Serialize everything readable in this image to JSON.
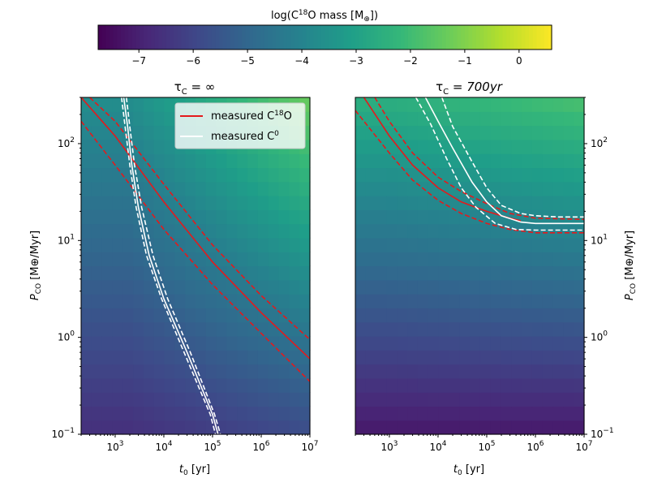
{
  "colorbar": {
    "label_main": "log(C",
    "label_sup": "18",
    "label_rest": "O mass [M",
    "label_sub": "⊕",
    "label_end": "])",
    "range": [
      -7.75,
      0.6
    ],
    "ticks": [
      "−7",
      "−6",
      "−5",
      "−4",
      "−3",
      "−2",
      "−1",
      "0"
    ],
    "tick_values": [
      -7,
      -6,
      -5,
      -4,
      -3,
      -2,
      -1,
      0
    ],
    "colormap": "viridis"
  },
  "chart_data": [
    {
      "type": "heatmap",
      "title_main": "τ",
      "title_sub": "C",
      "title_rest": " = ∞",
      "xlabel_main": "t",
      "xlabel_sub": "0",
      "xlabel_rest": " [yr]",
      "ylabel_main": "P",
      "ylabel_sub": "CO",
      "ylabel_rest": " [M⊕/Myr]",
      "x_scale": "log",
      "y_scale": "log",
      "xlim": [
        200,
        10000000
      ],
      "ylim": [
        0.1,
        300
      ],
      "x_ticks": [
        "10",
        "10",
        "10",
        "10",
        "10"
      ],
      "x_tick_exps": [
        "3",
        "4",
        "5",
        "6",
        "7"
      ],
      "x_tick_values": [
        1000,
        10000,
        100000,
        1000000,
        10000000
      ],
      "y_ticks": [
        "10",
        "10",
        "10",
        "10"
      ],
      "y_tick_exps": [
        "−1",
        "0",
        "1",
        "2"
      ],
      "y_tick_values": [
        0.1,
        1,
        10,
        100
      ],
      "legend": {
        "position": "upper right",
        "items": [
          {
            "label_main": "measured C",
            "label_sup": "18",
            "label_rest": "O",
            "color": "#e41a1c"
          },
          {
            "label_main": "measured C",
            "label_sup": "0",
            "label_rest": "",
            "color": "#ffffff"
          }
        ]
      },
      "series": [
        {
          "name": "measured C18O",
          "style": "solid",
          "color": "#e41a1c",
          "x": [
            200,
            1000,
            10000,
            100000,
            1000000,
            10000000
          ],
          "y": [
            300,
            120,
            25,
            6,
            1.8,
            0.6
          ]
        },
        {
          "name": "measured C18O upper",
          "style": "dashed",
          "color": "#e41a1c",
          "x": [
            300,
            1000,
            10000,
            100000,
            1000000,
            10000000
          ],
          "y": [
            300,
            170,
            38,
            9,
            2.7,
            0.95
          ]
        },
        {
          "name": "measured C18O lower",
          "style": "dashed",
          "color": "#e41a1c",
          "x": [
            200,
            1000,
            10000,
            100000,
            1000000,
            10000000
          ],
          "y": [
            170,
            60,
            13,
            3.5,
            1.1,
            0.35
          ]
        },
        {
          "name": "measured C0",
          "style": "solid",
          "color": "#ffffff",
          "x": [
            1500,
            1800,
            2200,
            3000,
            5000,
            10000,
            30000,
            100000,
            130000
          ],
          "y": [
            300,
            150,
            60,
            22,
            7,
            2.5,
            0.7,
            0.16,
            0.1
          ]
        },
        {
          "name": "measured C0 upper",
          "style": "dashed",
          "color": "#ffffff",
          "x": [
            1700,
            2000,
            2500,
            3500,
            6000,
            12000,
            35000,
            110000,
            145000
          ],
          "y": [
            300,
            150,
            60,
            22,
            7,
            2.5,
            0.7,
            0.16,
            0.1
          ]
        },
        {
          "name": "measured C0 lower",
          "style": "dashed",
          "color": "#ffffff",
          "x": [
            1350,
            1600,
            2000,
            2700,
            4400,
            9000,
            26000,
            90000,
            115000
          ],
          "y": [
            300,
            150,
            60,
            22,
            7,
            2.5,
            0.7,
            0.16,
            0.1
          ]
        }
      ]
    },
    {
      "type": "heatmap",
      "title_main": "τ",
      "title_sub": "C",
      "title_rest": " = 700yr",
      "xlabel_main": "t",
      "xlabel_sub": "0",
      "xlabel_rest": " [yr]",
      "ylabel_main": "P",
      "ylabel_sub": "CO",
      "ylabel_rest": " [M⊕/Myr]",
      "x_scale": "log",
      "y_scale": "log",
      "xlim": [
        200,
        10000000
      ],
      "ylim": [
        0.1,
        300
      ],
      "x_ticks": [
        "10",
        "10",
        "10",
        "10",
        "10"
      ],
      "x_tick_exps": [
        "3",
        "4",
        "5",
        "6",
        "7"
      ],
      "x_tick_values": [
        1000,
        10000,
        100000,
        1000000,
        10000000
      ],
      "y_ticks": [
        "10",
        "10",
        "10",
        "10"
      ],
      "y_tick_exps": [
        "−1",
        "0",
        "1",
        "2"
      ],
      "y_tick_values": [
        0.1,
        1,
        10,
        100
      ],
      "series": [
        {
          "name": "measured C18O",
          "style": "solid",
          "color": "#e41a1c",
          "x": [
            300,
            1000,
            3000,
            10000,
            30000,
            100000,
            300000,
            500000
          ],
          "y": [
            300,
            120,
            60,
            35,
            25,
            20,
            17,
            16
          ]
        },
        {
          "name": "measured C18O upper",
          "style": "dashed",
          "color": "#e41a1c",
          "x": [
            500,
            1000,
            3000,
            10000,
            30000,
            100000,
            300000,
            1000000,
            10000000
          ],
          "y": [
            300,
            170,
            80,
            45,
            32,
            24,
            19,
            17,
            16.5
          ]
        },
        {
          "name": "measured C18O lower",
          "style": "dashed",
          "color": "#e41a1c",
          "x": [
            200,
            1000,
            3000,
            10000,
            30000,
            100000,
            300000,
            1000000,
            10000000
          ],
          "y": [
            220,
            80,
            42,
            26,
            19,
            15,
            13,
            12,
            12
          ]
        },
        {
          "name": "measured C0",
          "style": "solid",
          "color": "#ffffff",
          "x": [
            5500,
            10000,
            20000,
            50000,
            100000,
            200000,
            500000,
            1000000,
            10000000
          ],
          "y": [
            300,
            170,
            90,
            40,
            25,
            18,
            15.5,
            15,
            15
          ]
        },
        {
          "name": "measured C0 upper",
          "style": "dashed",
          "color": "#ffffff",
          "x": [
            12000,
            20000,
            50000,
            100000,
            200000,
            500000,
            1000000,
            3000000,
            10000000
          ],
          "y": [
            300,
            150,
            65,
            35,
            23,
            19,
            18,
            17.5,
            17.5
          ]
        },
        {
          "name": "measured C0 lower",
          "style": "dashed",
          "color": "#ffffff",
          "x": [
            3500,
            7000,
            15000,
            30000,
            60000,
            150000,
            400000,
            1000000,
            10000000
          ],
          "y": [
            300,
            160,
            70,
            35,
            22,
            15,
            13,
            12.8,
            12.8
          ]
        }
      ]
    }
  ]
}
